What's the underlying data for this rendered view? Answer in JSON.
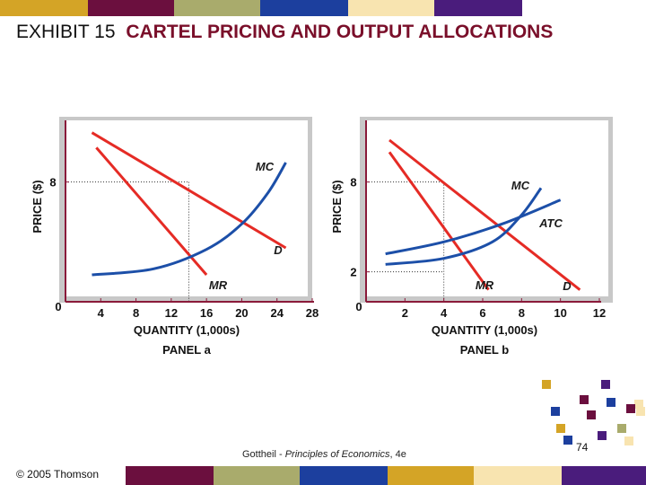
{
  "colors": {
    "band": [
      "#d4a426",
      "#6b0f3e",
      "#a9ab6c",
      "#1c3f9e",
      "#f8e4b0",
      "#4a1c7c"
    ],
    "maroon": "#7a0f2a",
    "curve_red": "#e52b25",
    "curve_blue": "#1c4fa8",
    "axis": "#8a1a3a",
    "panel_bg": "#ffffff",
    "frame_bg": "#c8c8c8"
  },
  "header": {
    "prefix": "EXHIBIT 15",
    "title": "CARTEL PRICING AND OUTPUT ALLOCATIONS"
  },
  "footer": {
    "author": "Gottheil - ",
    "book": "Principles of Economics",
    "edition": ", 4e",
    "copyright": "© 2005 Thomson",
    "page": "74"
  },
  "chart_data": [
    {
      "type": "line",
      "panel_label": "PANEL a",
      "xlabel": "QUANTITY (1,000s)",
      "ylabel": "PRICE ($)",
      "origin_label": "0",
      "xlim": [
        0,
        28
      ],
      "ylim": [
        0,
        12
      ],
      "x_ticks": [
        4,
        8,
        12,
        16,
        20,
        24,
        28
      ],
      "y_ticks": [
        8
      ],
      "guides": {
        "x": 14,
        "y": 8
      },
      "series": [
        {
          "name": "D",
          "color": "red",
          "points": [
            [
              3,
              11.3
            ],
            [
              25,
              3.6
            ]
          ]
        },
        {
          "name": "MR",
          "color": "red",
          "points": [
            [
              3.5,
              10.3
            ],
            [
              16,
              1.8
            ]
          ]
        },
        {
          "name": "MC",
          "color": "blue",
          "points": [
            [
              3,
              1.8
            ],
            [
              10,
              2.2
            ],
            [
              16,
              3.5
            ],
            [
              20,
              5.2
            ],
            [
              23,
              7.3
            ],
            [
              25,
              9.3
            ]
          ]
        }
      ]
    },
    {
      "type": "line",
      "panel_label": "PANEL b",
      "xlabel": "QUANTITY (1,000s)",
      "ylabel": "PRICE ($)",
      "origin_label": "0",
      "xlim": [
        0,
        12
      ],
      "ylim": [
        0,
        12
      ],
      "x_ticks": [
        2,
        4,
        6,
        8,
        10,
        12
      ],
      "y_ticks": [
        2,
        8
      ],
      "guides": {
        "x": 4,
        "y": 8,
        "y_low": 2
      },
      "series": [
        {
          "name": "D",
          "color": "red",
          "points": [
            [
              1.2,
              10.8
            ],
            [
              11,
              0.8
            ]
          ]
        },
        {
          "name": "MR",
          "color": "red",
          "points": [
            [
              1.2,
              10
            ],
            [
              6.3,
              0.8
            ]
          ]
        },
        {
          "name": "ATC",
          "color": "blue",
          "points": [
            [
              1,
              3.2
            ],
            [
              4,
              4
            ],
            [
              7,
              5.2
            ],
            [
              10,
              6.8
            ]
          ]
        },
        {
          "name": "MC",
          "color": "blue",
          "points": [
            [
              1,
              2.5
            ],
            [
              4,
              2.9
            ],
            [
              6.5,
              4
            ],
            [
              8,
              5.8
            ],
            [
              9,
              7.6
            ]
          ]
        }
      ]
    }
  ]
}
